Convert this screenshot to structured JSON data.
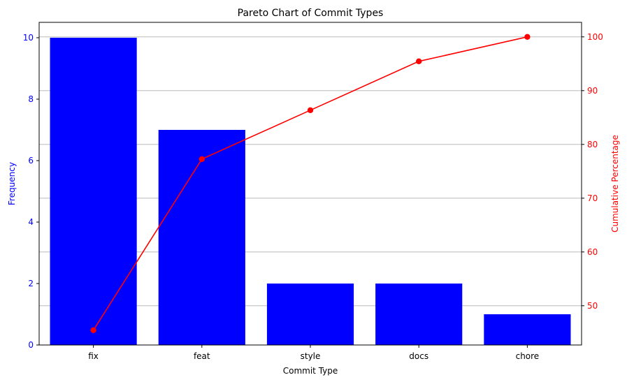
{
  "chart_data": {
    "type": "bar",
    "title": "Pareto Chart of Commit Types",
    "xlabel": "Commit Type",
    "ylabel": "Frequency",
    "y2label": "Cumulative Percentage",
    "categories": [
      "fix",
      "feat",
      "style",
      "docs",
      "chore"
    ],
    "values": [
      10,
      7,
      2,
      2,
      1
    ],
    "cumulative_percentage": [
      45.45,
      77.27,
      86.36,
      95.45,
      100.0
    ],
    "ylim": [
      0,
      10.5
    ],
    "y2lim": [
      42.7,
      102.7
    ],
    "yticks": [
      0,
      2,
      4,
      6,
      8,
      10
    ],
    "y2ticks": [
      50,
      60,
      70,
      80,
      90,
      100
    ],
    "grid": "horizontal, right axis",
    "colors": {
      "bars": "#0000ff",
      "line": "#ff0000",
      "left_axis": "#0000ff",
      "right_axis": "#ff0000",
      "grid": "#b0b0b0"
    }
  }
}
